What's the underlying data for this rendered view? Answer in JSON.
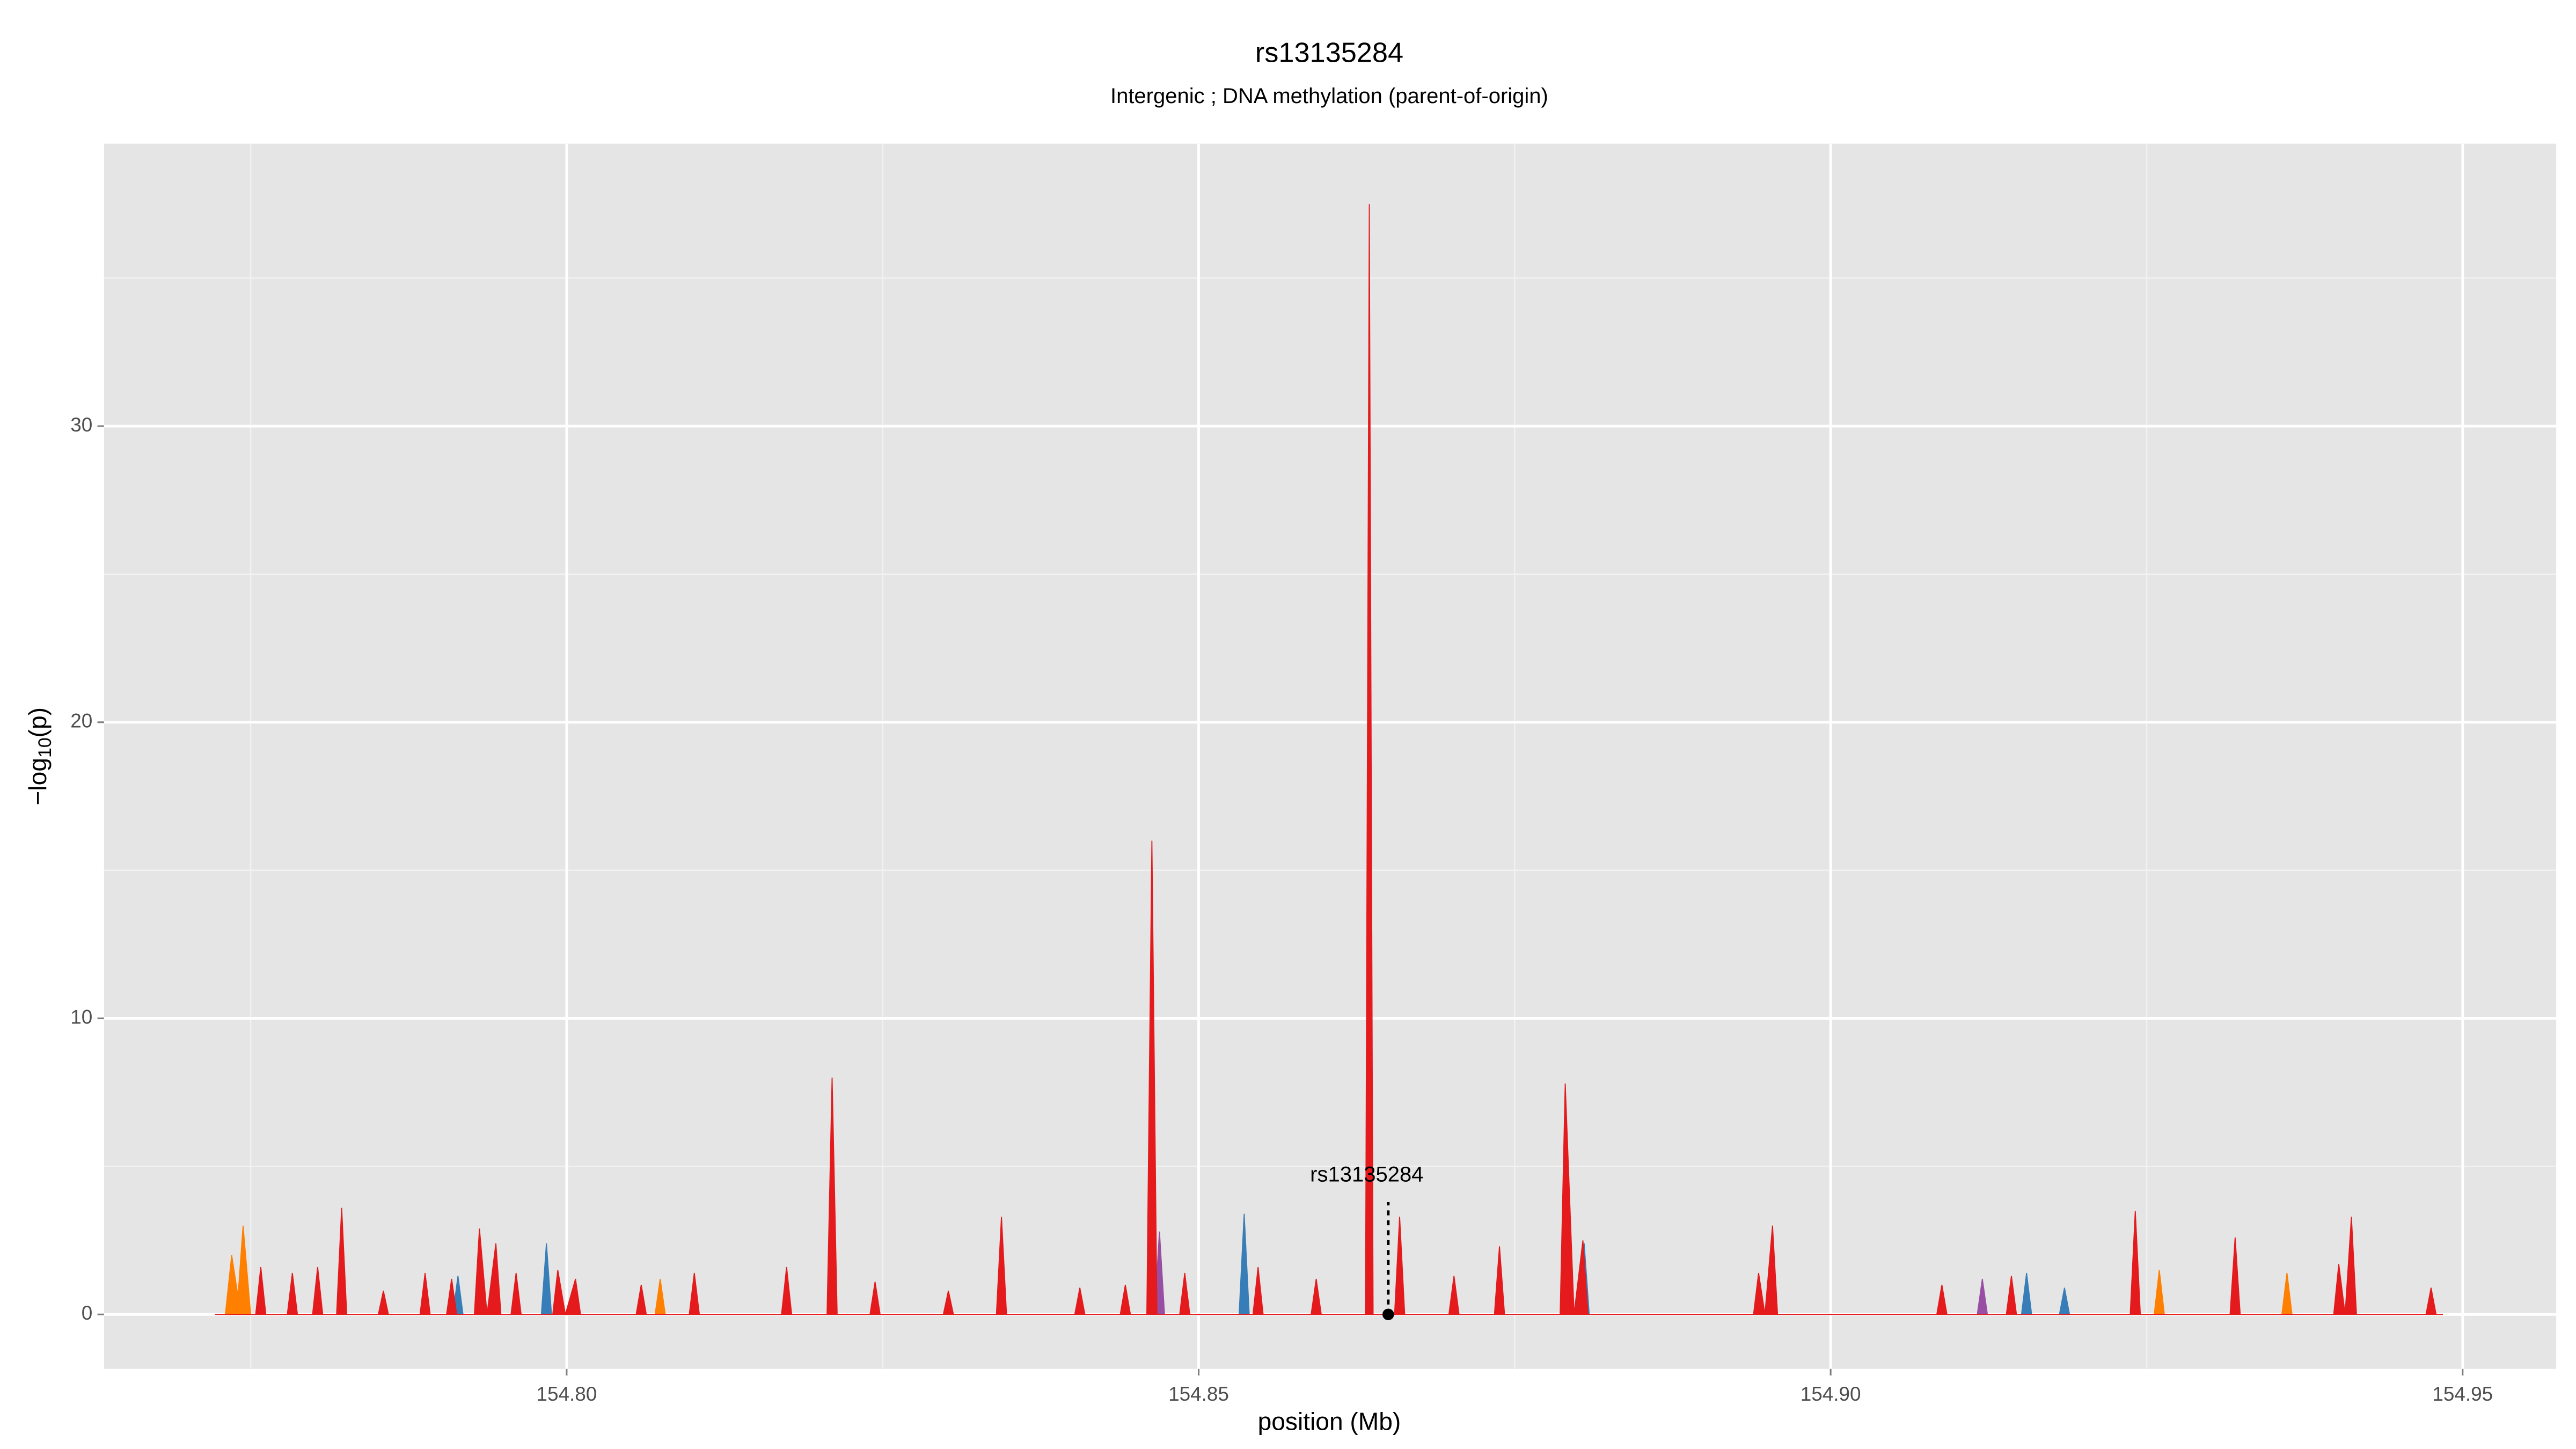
{
  "chart_data": {
    "type": "area",
    "title": "rs13135284",
    "subtitle": "Intergenic ; DNA methylation (parent-of-origin)",
    "xlabel": "position (Mb)",
    "ylabel": [
      "−log",
      "10",
      "(p)"
    ],
    "xlim": [
      154.7634,
      154.9574
    ],
    "ylim": [
      -1.84,
      39.54
    ],
    "xticks": [
      {
        "value": 154.8,
        "label": "154.80"
      },
      154.85,
      {
        "value": 154.9,
        "label": "154.90"
      },
      154.95
    ],
    "yticks": [
      0,
      10,
      20,
      30
    ],
    "minor_xticks": [
      154.775,
      154.825,
      154.875,
      154.925
    ],
    "minor_yticks": [
      5,
      15,
      25,
      35
    ],
    "grid": true,
    "series": [
      {
        "color": "#377eb8",
        "x": [
          154.791,
          154.7914,
          154.7918,
          154.798,
          154.7984,
          154.7988,
          154.8532,
          154.8536,
          154.854,
          154.8801,
          154.8805,
          154.8809,
          154.9151,
          154.9155,
          154.9159,
          154.9181,
          154.9185,
          154.9189
        ],
        "values": [
          0,
          1.3,
          0,
          0,
          2.4,
          0,
          0,
          3.4,
          0,
          0,
          2.4,
          0,
          0,
          1.4,
          0,
          0,
          0.9,
          0
        ]
      },
      {
        "color": "#984ea3",
        "x": [
          154.8465,
          154.8469,
          154.8473,
          154.9116,
          154.912,
          154.9124
        ],
        "values": [
          0,
          2.8,
          0,
          0,
          1.2,
          0
        ]
      },
      {
        "color": "#ff7f00",
        "x": [
          154.773,
          154.7735,
          154.774,
          154.7744,
          154.775,
          154.807,
          154.8074,
          154.8078,
          154.9256,
          154.926,
          154.9264,
          154.9357,
          154.9361,
          154.9365
        ],
        "values": [
          0,
          2.0,
          0.6,
          3.0,
          0,
          0,
          1.2,
          0,
          0,
          1.5,
          0,
          0,
          1.4,
          0
        ]
      },
      {
        "color": "#e41a1c",
        "x": [
          154.7722,
          154.7754,
          154.7758,
          154.7762,
          154.7779,
          154.7783,
          154.7787,
          154.7799,
          154.7803,
          154.7807,
          154.7818,
          154.7822,
          154.7826,
          154.7851,
          154.7855,
          154.7859,
          154.7884,
          154.7888,
          154.7892,
          154.7905,
          154.7909,
          154.7913,
          154.7927,
          154.7931,
          154.7937,
          154.7944,
          154.7948,
          154.7956,
          154.796,
          154.7964,
          154.7989,
          154.7993,
          154.7999,
          154.8007,
          154.8011,
          154.8055,
          154.8059,
          154.8063,
          154.8097,
          154.8101,
          154.8105,
          154.817,
          154.8174,
          154.8178,
          154.8206,
          154.821,
          154.8214,
          154.824,
          154.8244,
          154.8248,
          154.8298,
          154.8302,
          154.8306,
          154.834,
          154.8344,
          154.8348,
          154.8402,
          154.8406,
          154.841,
          154.8438,
          154.8442,
          154.8446,
          154.8459,
          154.8463,
          154.8467,
          154.8485,
          154.8489,
          154.8493,
          154.8543,
          154.8547,
          154.8551,
          154.8589,
          154.8593,
          154.8597,
          154.8632,
          154.8635,
          154.8638,
          154.8655,
          154.8659,
          154.8663,
          154.8698,
          154.8702,
          154.8706,
          154.8734,
          154.8738,
          154.8742,
          154.8786,
          154.879,
          154.8797,
          154.8804,
          154.8808,
          154.8939,
          154.8943,
          154.8948,
          154.8954,
          154.8958,
          154.9084,
          154.9088,
          154.9092,
          154.9139,
          154.9143,
          154.9147,
          154.9237,
          154.9241,
          154.9245,
          154.9316,
          154.932,
          154.9324,
          154.9398,
          154.9402,
          154.9407,
          154.9412,
          154.9416,
          154.9471,
          154.9475,
          154.9479,
          154.9484
        ],
        "values": [
          0,
          0,
          1.6,
          0,
          0,
          1.4,
          0,
          0,
          1.6,
          0,
          0,
          3.6,
          0,
          0,
          0.8,
          0,
          0,
          1.4,
          0,
          0,
          1.2,
          0,
          0,
          2.9,
          0,
          2.4,
          0,
          0,
          1.4,
          0,
          0,
          1.5,
          0,
          1.2,
          0,
          0,
          1.0,
          0,
          0,
          1.4,
          0,
          0,
          1.6,
          0,
          0,
          8.0,
          0,
          0,
          1.1,
          0,
          0,
          0.8,
          0,
          0,
          3.3,
          0,
          0,
          0.9,
          0,
          0,
          1.0,
          0,
          0,
          16.0,
          0,
          0,
          1.4,
          0,
          0,
          1.6,
          0,
          0,
          1.2,
          0,
          0,
          37.5,
          0,
          0,
          3.3,
          0,
          0,
          1.3,
          0,
          0,
          2.3,
          0,
          0,
          7.8,
          0,
          2.5,
          0,
          0,
          1.4,
          0,
          3.0,
          0,
          0,
          1.0,
          0,
          0,
          1.3,
          0,
          0,
          3.5,
          0,
          0,
          2.6,
          0,
          0,
          1.7,
          0,
          3.3,
          0,
          0,
          0.9,
          0,
          0
        ]
      }
    ],
    "annotation": {
      "text": "rs13135284",
      "x": 154.865,
      "y": 0
    }
  }
}
